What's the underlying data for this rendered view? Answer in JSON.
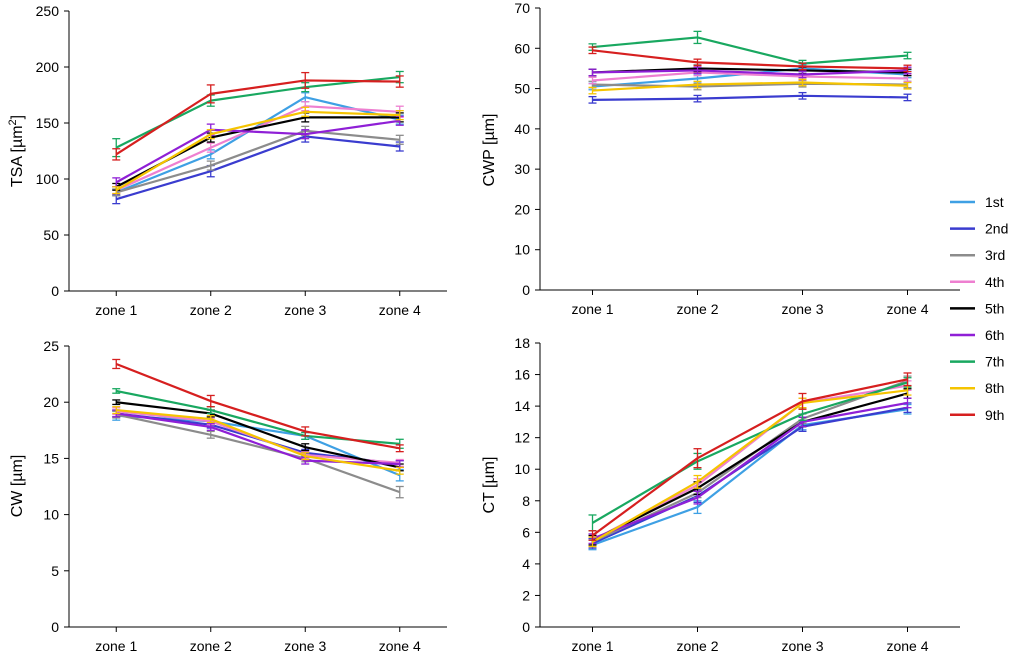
{
  "series_colors": {
    "1st": "#3ea0e4",
    "2nd": "#3a3ccf",
    "3rd": "#8c8c8c",
    "4th": "#ee7fd0",
    "5th": "#000000",
    "6th": "#8f1fd6",
    "7th": "#19a860",
    "8th": "#f5c400",
    "9th": "#d61f1f"
  },
  "legend": [
    "1st",
    "2nd",
    "3rd",
    "4th",
    "5th",
    "6th",
    "7th",
    "8th",
    "9th"
  ],
  "chart_data": [
    {
      "type": "line",
      "ylabel_main": "TSA [µm",
      "ylabel_sup": "2",
      "ylabel_end": "]",
      "categories": [
        "zone 1",
        "zone 2",
        "zone 3",
        "zone 4"
      ],
      "ylim": [
        0,
        250
      ],
      "yticks": [
        0,
        50,
        100,
        150,
        200,
        250
      ],
      "series": [
        {
          "name": "1st",
          "values": [
            88,
            122,
            173,
            153
          ],
          "err": [
            3,
            4,
            4,
            4
          ]
        },
        {
          "name": "2nd",
          "values": [
            82,
            107,
            138,
            129
          ],
          "err": [
            4,
            5,
            5,
            4
          ]
        },
        {
          "name": "3rd",
          "values": [
            88,
            112,
            143,
            135
          ],
          "err": [
            3,
            4,
            4,
            4
          ]
        },
        {
          "name": "4th",
          "values": [
            90,
            128,
            165,
            160
          ],
          "err": [
            3,
            4,
            4,
            5
          ]
        },
        {
          "name": "5th",
          "values": [
            93,
            137,
            155,
            155
          ],
          "err": [
            3,
            4,
            4,
            4
          ]
        },
        {
          "name": "6th",
          "values": [
            97,
            144,
            140,
            152
          ],
          "err": [
            4,
            5,
            4,
            4
          ]
        },
        {
          "name": "7th",
          "values": [
            128,
            170,
            182,
            191
          ],
          "err": [
            8,
            5,
            4,
            5
          ]
        },
        {
          "name": "8th",
          "values": [
            90,
            140,
            160,
            157
          ],
          "err": [
            3,
            4,
            4,
            4
          ]
        },
        {
          "name": "9th",
          "values": [
            122,
            176,
            188,
            187
          ],
          "err": [
            5,
            8,
            7,
            5
          ]
        }
      ]
    },
    {
      "type": "line",
      "ylabel_main": "CWP [µm]",
      "ylabel_sup": "",
      "ylabel_end": "",
      "categories": [
        "zone 1",
        "zone 2",
        "zone 3",
        "zone 4"
      ],
      "ylim": [
        0,
        70
      ],
      "yticks": [
        0,
        10,
        20,
        30,
        40,
        50,
        60,
        70
      ],
      "series": [
        {
          "name": "1st",
          "values": [
            50.5,
            52.5,
            55.0,
            53.5
          ],
          "err": [
            0.8,
            0.8,
            0.8,
            0.8
          ]
        },
        {
          "name": "2nd",
          "values": [
            47.2,
            47.5,
            48.2,
            47.8
          ],
          "err": [
            0.8,
            0.8,
            0.8,
            0.8
          ]
        },
        {
          "name": "3rd",
          "values": [
            51.0,
            50.5,
            51.2,
            51.0
          ],
          "err": [
            0.8,
            0.8,
            0.8,
            0.8
          ]
        },
        {
          "name": "4th",
          "values": [
            52.0,
            54.0,
            53.0,
            52.5
          ],
          "err": [
            0.8,
            0.8,
            0.8,
            0.8
          ]
        },
        {
          "name": "5th",
          "values": [
            54.0,
            55.0,
            54.5,
            54.0
          ],
          "err": [
            0.8,
            0.8,
            0.8,
            0.8
          ]
        },
        {
          "name": "6th",
          "values": [
            54.0,
            54.5,
            53.5,
            54.5
          ],
          "err": [
            0.8,
            0.8,
            0.8,
            0.8
          ]
        },
        {
          "name": "7th",
          "values": [
            60.3,
            62.7,
            56.2,
            58.2
          ],
          "err": [
            0.8,
            1.5,
            0.8,
            0.8
          ]
        },
        {
          "name": "8th",
          "values": [
            49.5,
            51.0,
            51.5,
            50.7
          ],
          "err": [
            0.8,
            0.8,
            0.8,
            0.8
          ]
        },
        {
          "name": "9th",
          "values": [
            59.5,
            56.5,
            55.5,
            55.0
          ],
          "err": [
            0.8,
            0.8,
            0.8,
            0.8
          ]
        }
      ]
    },
    {
      "type": "line",
      "ylabel_main": "CW [µm]",
      "ylabel_sup": "",
      "ylabel_end": "",
      "categories": [
        "zone 1",
        "zone 2",
        "zone 3",
        "zone 4"
      ],
      "ylim": [
        0,
        25
      ],
      "yticks": [
        0,
        5,
        10,
        15,
        20,
        25
      ],
      "series": [
        {
          "name": "1st",
          "values": [
            18.8,
            18.3,
            17.0,
            13.5
          ],
          "err": [
            0.4,
            0.3,
            0.3,
            0.5
          ]
        },
        {
          "name": "2nd",
          "values": [
            19.0,
            18.0,
            15.5,
            14.5
          ],
          "err": [
            0.3,
            0.3,
            0.3,
            0.3
          ]
        },
        {
          "name": "3rd",
          "values": [
            18.9,
            17.1,
            15.0,
            12.0
          ],
          "err": [
            0.3,
            0.3,
            0.3,
            0.5
          ]
        },
        {
          "name": "4th",
          "values": [
            19.2,
            18.3,
            15.3,
            14.6
          ],
          "err": [
            0.3,
            0.3,
            0.3,
            0.3
          ]
        },
        {
          "name": "5th",
          "values": [
            20.0,
            19.0,
            16.0,
            14.2
          ],
          "err": [
            0.2,
            0.3,
            0.3,
            0.3
          ]
        },
        {
          "name": "6th",
          "values": [
            19.0,
            17.8,
            14.8,
            14.5
          ],
          "err": [
            0.3,
            0.3,
            0.3,
            0.3
          ]
        },
        {
          "name": "7th",
          "values": [
            21.0,
            19.3,
            17.0,
            16.3
          ],
          "err": [
            0.2,
            0.3,
            0.3,
            0.4
          ]
        },
        {
          "name": "8th",
          "values": [
            19.3,
            18.5,
            15.2,
            13.9
          ],
          "err": [
            0.3,
            0.3,
            0.3,
            0.3
          ]
        },
        {
          "name": "9th",
          "values": [
            23.4,
            20.1,
            17.4,
            15.9
          ],
          "err": [
            0.4,
            0.5,
            0.4,
            0.3
          ]
        }
      ]
    },
    {
      "type": "line",
      "ylabel_main": "CT [µm]",
      "ylabel_sup": "",
      "ylabel_end": "",
      "categories": [
        "zone 1",
        "zone 2",
        "zone 3",
        "zone 4"
      ],
      "ylim": [
        0,
        18
      ],
      "yticks": [
        0,
        2,
        4,
        6,
        8,
        10,
        12,
        14,
        16,
        18
      ],
      "series": [
        {
          "name": "1st",
          "values": [
            5.2,
            7.6,
            12.8,
            13.8
          ],
          "err": [
            0.3,
            0.4,
            0.3,
            0.3
          ]
        },
        {
          "name": "2nd",
          "values": [
            5.3,
            8.3,
            12.7,
            13.9
          ],
          "err": [
            0.3,
            0.4,
            0.3,
            0.3
          ]
        },
        {
          "name": "3rd",
          "values": [
            5.4,
            8.5,
            13.2,
            15.6
          ],
          "err": [
            0.3,
            0.3,
            0.3,
            0.3
          ]
        },
        {
          "name": "4th",
          "values": [
            5.5,
            9.0,
            14.2,
            15.3
          ],
          "err": [
            0.3,
            0.4,
            0.3,
            0.3
          ]
        },
        {
          "name": "5th",
          "values": [
            5.5,
            8.8,
            13.0,
            14.8
          ],
          "err": [
            0.3,
            0.4,
            0.3,
            0.3
          ]
        },
        {
          "name": "6th",
          "values": [
            5.6,
            8.2,
            13.0,
            14.2
          ],
          "err": [
            0.3,
            0.4,
            0.3,
            0.3
          ]
        },
        {
          "name": "7th",
          "values": [
            6.6,
            10.5,
            13.5,
            15.5
          ],
          "err": [
            0.5,
            0.5,
            0.4,
            0.3
          ]
        },
        {
          "name": "8th",
          "values": [
            5.4,
            9.2,
            14.2,
            15.0
          ],
          "err": [
            0.3,
            0.4,
            0.3,
            0.3
          ]
        },
        {
          "name": "9th",
          "values": [
            5.8,
            10.7,
            14.3,
            15.7
          ],
          "err": [
            0.3,
            0.6,
            0.5,
            0.4
          ]
        }
      ]
    }
  ]
}
